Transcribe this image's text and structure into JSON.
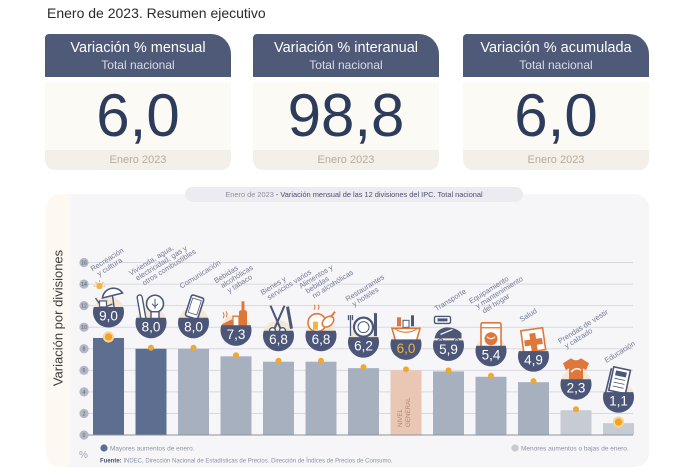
{
  "page": {
    "title": "Enero de 2023. Resumen ejecutivo"
  },
  "cards": [
    {
      "title": "Variación % mensual",
      "subtitle": "Total nacional",
      "value": "6,0",
      "period": "Enero 2023"
    },
    {
      "title": "Variación % interanual",
      "subtitle": "Total nacional",
      "value": "98,8",
      "period": "Enero 2023"
    },
    {
      "title": "Variación % acumulada",
      "subtitle": "Total nacional",
      "value": "6,0",
      "period": "Enero 2023"
    }
  ],
  "chart_data": {
    "type": "bar",
    "title_prefix": "Enero de 2023",
    "title_separator": " - ",
    "title": "Variación mensual de las 12 divisiones del IPC. Total nacional",
    "ylabel": "Variación por divisiones",
    "yunit": "%",
    "ylim": [
      0,
      16
    ],
    "yticks": [
      0,
      2,
      4,
      6,
      8,
      10,
      12,
      14,
      16
    ],
    "grid": true,
    "categories": [
      {
        "lines": [
          "Recreación",
          "y cultura"
        ]
      },
      {
        "lines": [
          "Vivienda, agua,",
          "electricidad, gas y",
          "otros combustibles"
        ]
      },
      {
        "lines": [
          "Comunicación"
        ]
      },
      {
        "lines": [
          "Bebidas",
          "alcohólicas",
          "y tabaco"
        ]
      },
      {
        "lines": [
          "Bienes y",
          "servicios varios"
        ]
      },
      {
        "lines": [
          "Alimentos y",
          "bebidas",
          "no alcohólicas"
        ]
      },
      {
        "lines": [
          "Restaurantes",
          "y hoteles"
        ]
      },
      {
        "lines": [
          "NIVEL",
          "GENERAL"
        ]
      },
      {
        "lines": [
          "Transporte"
        ]
      },
      {
        "lines": [
          "Equipamiento",
          "y mantenimiento",
          "del hogar"
        ]
      },
      {
        "lines": [
          "Salud"
        ]
      },
      {
        "lines": [
          "Prendas de vestir",
          "y calzado"
        ]
      },
      {
        "lines": [
          "Educación"
        ]
      }
    ],
    "values": [
      9.0,
      8.0,
      8.0,
      7.3,
      6.8,
      6.8,
      6.2,
      6.0,
      5.9,
      5.4,
      4.9,
      2.3,
      1.1
    ],
    "value_labels": [
      "9,0",
      "8,0",
      "8,0",
      "7,3",
      "6,8",
      "6,8",
      "6,2",
      "6,0",
      "5,9",
      "5,4",
      "4,9",
      "2,3",
      "1,1"
    ],
    "bar_colors": [
      "#5d6e90",
      "#5d6e90",
      "#a6b0bf",
      "#a6b0bf",
      "#a6b0bf",
      "#a6b0bf",
      "#a6b0bf",
      "#e9c7b4",
      "#a6b0bf",
      "#a6b0bf",
      "#a6b0bf",
      "#c7cbd2",
      "#c7cbd2"
    ],
    "value_label_colors": [
      "#ffffff",
      "#ffffff",
      "#ffffff",
      "#ffffff",
      "#ffffff",
      "#ffffff",
      "#ffffff",
      "#f2b43c",
      "#ffffff",
      "#ffffff",
      "#ffffff",
      "#ffffff",
      "#ffffff"
    ],
    "emphasis": [
      true,
      false,
      false,
      false,
      false,
      false,
      false,
      false,
      false,
      false,
      false,
      false,
      true
    ],
    "icons": [
      "umbrella-icon",
      "lightbulb-icon",
      "smartphone-icon",
      "bottle-icon",
      "scissors-icon",
      "chicken-icon",
      "plate-cutlery-icon",
      "shopping-basket-icon",
      "car-icon",
      "washing-machine-icon",
      "medical-cross-icon",
      "tshirt-icon",
      "notebook-icon"
    ],
    "legend": [
      {
        "label": "Mayores aumentos de enero.",
        "color": "#5d6e90"
      },
      {
        "label": "Menores aumentos o bajas de enero.",
        "color": "#c7cbd2"
      }
    ],
    "source_label": "Fuente:",
    "source_text": " INDEC, Dirección Nacional de Estadísticas de Precios. Dirección de Índices de Precios de Consumo."
  },
  "colors": {
    "navy": "#4b5679",
    "accent_orange": "#e0773a",
    "accent_yellow": "#f2b43c",
    "dot": "#f0a92e",
    "badge_cream": "#f3e7d3"
  }
}
